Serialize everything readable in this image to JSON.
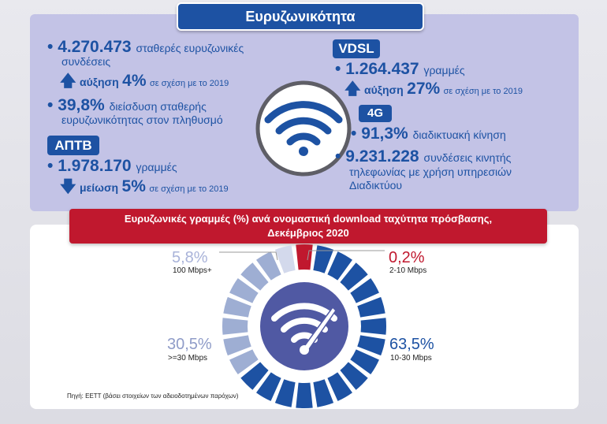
{
  "title": "Ευρυζωνικότητα",
  "fixed": {
    "count": "4.270.473",
    "count_text1": "σταθερές ευρυζωνικές",
    "count_text2": "συνδέσεις",
    "change_word": "αύξηση",
    "change_pct": "4%",
    "change_suffix": "σε σχέση με το 2019",
    "penetration": "39,8%",
    "penetration_text1": "διείσδυση σταθερής",
    "penetration_text2": "ευρυζωνικότητας στον πληθυσμό"
  },
  "aptv": {
    "badge": "ΑΠΤΒ",
    "count": "1.978.170",
    "unit": "γραμμές",
    "change_word": "μείωση",
    "change_pct": "5%",
    "change_suffix": "σε σχέση με το 2019"
  },
  "vdsl": {
    "badge": "VDSL",
    "count": "1.264.437",
    "unit": "γραμμές",
    "change_word": "αύξηση",
    "change_pct": "27%",
    "change_suffix": "σε σχέση με το 2019"
  },
  "g4": {
    "badge": "4G",
    "traffic_pct": "91,3%",
    "traffic_text": "διαδικτυακή κίνηση",
    "subs": "9.231.228",
    "subs_text1": "συνδέσεις κινητής",
    "subs_text2": "τηλεφωνίας με χρήση υπηρεσιών",
    "subs_text3": "Διαδικτύου"
  },
  "chart_title_line1": "Ευρυζωνικές γραμμές (%) ανά ονομαστική download ταχύτητα πρόσβασης,",
  "chart_title_line2": "Δεκέμβριος 2020",
  "chart_data": {
    "type": "pie",
    "categories": [
      "2-10 Mbps",
      "10-30 Mbps",
      ">=30 Mbps",
      "100 Mbps+"
    ],
    "values": [
      0.2,
      63.5,
      30.5,
      5.8
    ],
    "value_labels": [
      "0,2%",
      "63,5%",
      "30,5%",
      "5,8%"
    ],
    "colors": [
      "#c0182e",
      "#1d52a3",
      "#9eaed3",
      "#d3d9ec"
    ]
  },
  "source": "Πηγή: ΕΕΤΤ (βάσει στοιχείων των αδειοδοτημένων παρόχων)",
  "colors": {
    "blue": "#1d52a3",
    "red": "#c0182e",
    "lavender": "#c3c3e6"
  },
  "icons": [
    "arrow-up-icon",
    "arrow-down-icon",
    "wifi-icon",
    "wifi-speedometer-icon"
  ]
}
